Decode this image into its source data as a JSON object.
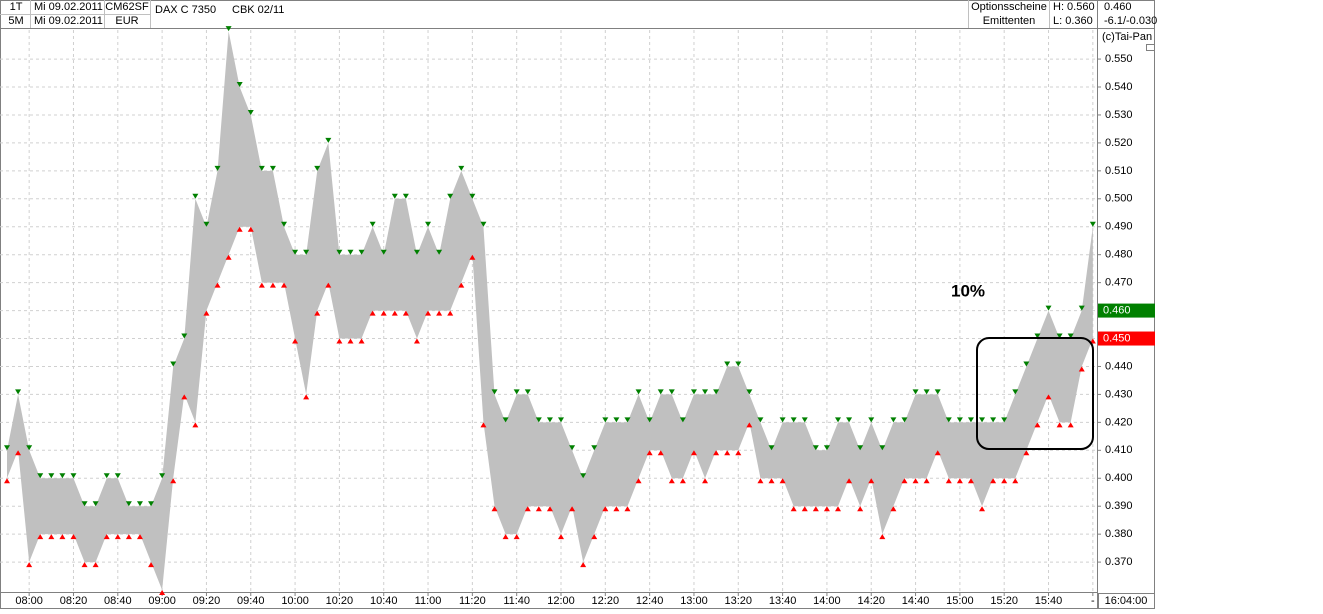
{
  "header": {
    "rows": [
      [
        "1T",
        "Mi 09.02.2011",
        "CM62SF"
      ],
      [
        "5M",
        "Mi 09.02.2011",
        "EUR"
      ]
    ],
    "instrument": "DAX C 7350",
    "contract": "CBK 02/11",
    "source": [
      "Optionsscheine",
      "Emittenten"
    ],
    "range": [
      "H: 0.560",
      "L: 0.360"
    ],
    "quote": [
      "0.460",
      "-6.1/-0.030"
    ],
    "copyright": "(c)Tai-Pan",
    "time": "16:04:00"
  },
  "chart_data": {
    "type": "range",
    "annotation": "10%",
    "band_color": "#c0c0c0",
    "high_color": "#008000",
    "low_color": "#ff0000",
    "grid": true,
    "categories": [
      null,
      null,
      "08:00",
      null,
      null,
      null,
      "08:20",
      null,
      null,
      null,
      "08:40",
      null,
      null,
      null,
      "09:00",
      null,
      null,
      null,
      "09:20",
      null,
      null,
      null,
      "09:40",
      null,
      null,
      null,
      "10:00",
      null,
      null,
      null,
      "10:20",
      null,
      null,
      null,
      "10:40",
      null,
      null,
      null,
      "11:00",
      null,
      null,
      null,
      "11:20",
      null,
      null,
      null,
      "11:40",
      null,
      null,
      null,
      "12:00",
      null,
      null,
      null,
      "12:20",
      null,
      null,
      null,
      "12:40",
      null,
      null,
      null,
      "13:00",
      null,
      null,
      null,
      "13:20",
      null,
      null,
      null,
      "13:40",
      null,
      null,
      null,
      "14:00",
      null,
      null,
      null,
      "14:20",
      null,
      null,
      null,
      "14:40",
      null,
      null,
      null,
      "15:00",
      null,
      null,
      null,
      "15:20",
      null,
      null,
      null,
      "15:40",
      null,
      null,
      null,
      "-"
    ],
    "high": [
      0.41,
      0.43,
      0.41,
      0.4,
      0.4,
      0.4,
      0.4,
      0.39,
      0.39,
      0.4,
      0.4,
      0.39,
      0.39,
      0.39,
      0.4,
      0.44,
      0.45,
      0.5,
      0.49,
      0.51,
      0.56,
      0.54,
      0.53,
      0.51,
      0.51,
      0.49,
      0.48,
      0.48,
      0.51,
      0.52,
      0.48,
      0.48,
      0.48,
      0.49,
      0.48,
      0.5,
      0.5,
      0.48,
      0.49,
      0.48,
      0.5,
      0.51,
      0.5,
      0.49,
      0.43,
      0.42,
      0.43,
      0.43,
      0.42,
      0.42,
      0.42,
      0.41,
      0.4,
      0.41,
      0.42,
      0.42,
      0.42,
      0.43,
      0.42,
      0.43,
      0.43,
      0.42,
      0.43,
      0.43,
      0.43,
      0.44,
      0.44,
      0.43,
      0.42,
      0.41,
      0.42,
      0.42,
      0.42,
      0.41,
      0.41,
      0.42,
      0.42,
      0.41,
      0.42,
      0.41,
      0.42,
      0.42,
      0.43,
      0.43,
      0.43,
      0.42,
      0.42,
      0.42,
      0.42,
      0.42,
      0.42,
      0.43,
      0.44,
      0.45,
      0.46,
      0.45,
      0.45,
      0.46,
      0.49
    ],
    "low": [
      0.4,
      0.41,
      0.37,
      0.38,
      0.38,
      0.38,
      0.38,
      0.37,
      0.37,
      0.38,
      0.38,
      0.38,
      0.38,
      0.37,
      0.36,
      0.4,
      0.43,
      0.42,
      0.46,
      0.47,
      0.48,
      0.49,
      0.49,
      0.47,
      0.47,
      0.47,
      0.45,
      0.43,
      0.46,
      0.47,
      0.45,
      0.45,
      0.45,
      0.46,
      0.46,
      0.46,
      0.46,
      0.45,
      0.46,
      0.46,
      0.46,
      0.47,
      0.48,
      0.42,
      0.39,
      0.38,
      0.38,
      0.39,
      0.39,
      0.39,
      0.38,
      0.39,
      0.37,
      0.38,
      0.39,
      0.39,
      0.39,
      0.4,
      0.41,
      0.41,
      0.4,
      0.4,
      0.41,
      0.4,
      0.41,
      0.41,
      0.41,
      0.42,
      0.4,
      0.4,
      0.4,
      0.39,
      0.39,
      0.39,
      0.39,
      0.39,
      0.4,
      0.39,
      0.4,
      0.38,
      0.39,
      0.4,
      0.4,
      0.4,
      0.41,
      0.4,
      0.4,
      0.4,
      0.39,
      0.4,
      0.4,
      0.4,
      0.41,
      0.42,
      0.43,
      0.42,
      0.42,
      0.44,
      0.45
    ],
    "ylim": [
      0.3593,
      0.5604
    ],
    "yticks": [
      {
        "value": 0.37,
        "label": "0.370"
      },
      {
        "value": 0.38,
        "label": "0.380"
      },
      {
        "value": 0.39,
        "label": "0.390"
      },
      {
        "value": 0.4,
        "label": "0.400"
      },
      {
        "value": 0.41,
        "label": "0.410"
      },
      {
        "value": 0.42,
        "label": "0.420"
      },
      {
        "value": 0.43,
        "label": "0.430"
      },
      {
        "value": 0.44,
        "label": "0.440"
      },
      {
        "value": 0.45,
        "label": "0.450"
      },
      {
        "value": 0.46,
        "label": "0.460"
      },
      {
        "value": 0.47,
        "label": "0.470"
      },
      {
        "value": 0.48,
        "label": "0.480"
      },
      {
        "value": 0.49,
        "label": "0.490"
      },
      {
        "value": 0.5,
        "label": "0.500"
      },
      {
        "value": 0.51,
        "label": "0.510"
      },
      {
        "value": 0.52,
        "label": "0.520"
      },
      {
        "value": 0.53,
        "label": "0.530"
      },
      {
        "value": 0.54,
        "label": "0.540"
      },
      {
        "value": 0.55,
        "label": "0.550"
      }
    ],
    "price_markers": [
      {
        "value": 0.46,
        "label": "0.460",
        "color": "#008000"
      },
      {
        "value": 0.45,
        "label": "0.450",
        "color": "#ff0000"
      }
    ]
  }
}
